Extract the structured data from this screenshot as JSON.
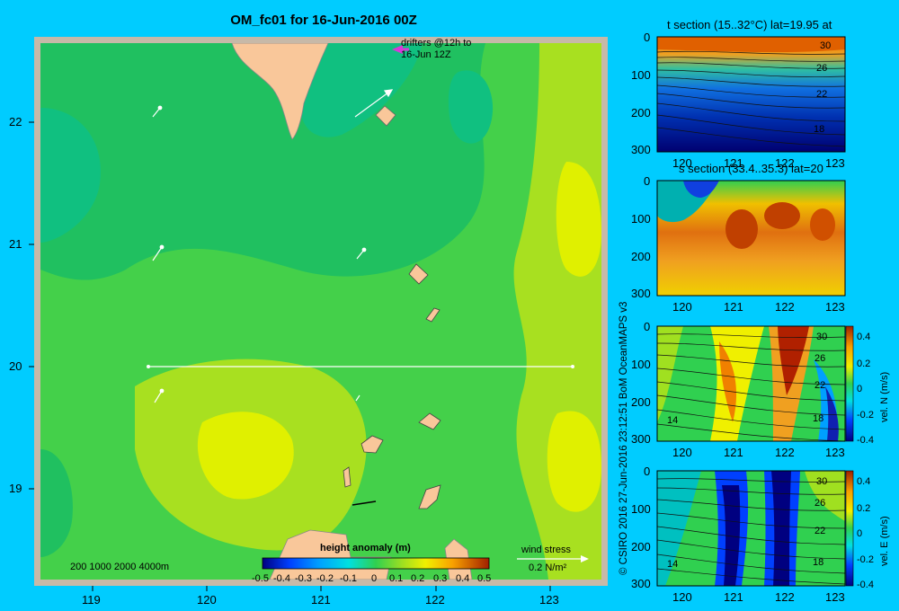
{
  "map": {
    "title": "OM_fc01 for 16-Jun-2016 00Z",
    "lon_ticks": [
      "119",
      "120",
      "121",
      "122",
      "123"
    ],
    "lat_ticks": [
      "22",
      "21",
      "20",
      "19"
    ],
    "drifters_note_line1": "drifters @12h to",
    "drifters_note_line2": "16-Jun 12Z",
    "bathy_legend": "200  1000  2000  4000m",
    "colorbar_title": "height anomaly  (m)",
    "colorbar_ticks": [
      "-0.5",
      "-0.4",
      "-0.3",
      "-0.2",
      "-0.1",
      "0",
      "0.1",
      "0.2",
      "0.3",
      "0.4",
      "0.5"
    ],
    "wind_stress_label": "wind stress",
    "wind_stress_scale": "0.2 N/m²",
    "colors": {
      "background": "#00ccff",
      "land": "#f9c79a",
      "frame": "#c7b9a8",
      "drifter_arrow": "#d63ad9"
    }
  },
  "sections": {
    "panel1_title": "t section (15..32°C) lat=19.95 at",
    "panel2_title": "s section (33.4..35.3) lat=20",
    "x_ticks": [
      "120",
      "121",
      "122",
      "123"
    ],
    "y_ticks": [
      "0",
      "100",
      "200",
      "300"
    ],
    "panel1_contour_labels": [
      "30",
      "26",
      "22",
      "18"
    ],
    "panel3_contour_labels": [
      "30",
      "26",
      "22",
      "18",
      "14"
    ],
    "panel4_contour_labels": [
      "30",
      "26",
      "22",
      "18",
      "14"
    ],
    "vel_ticks": [
      "0.4",
      "0.2",
      "0",
      "-0.2",
      "-0.4"
    ],
    "vel_n_label": "vel. N  (m/s)",
    "vel_e_label": "vel. E  (m/s)"
  },
  "credit": "© CSIRO 2016   27-Jun-2016 23:12:51 BoM OceanMAPS v3"
}
